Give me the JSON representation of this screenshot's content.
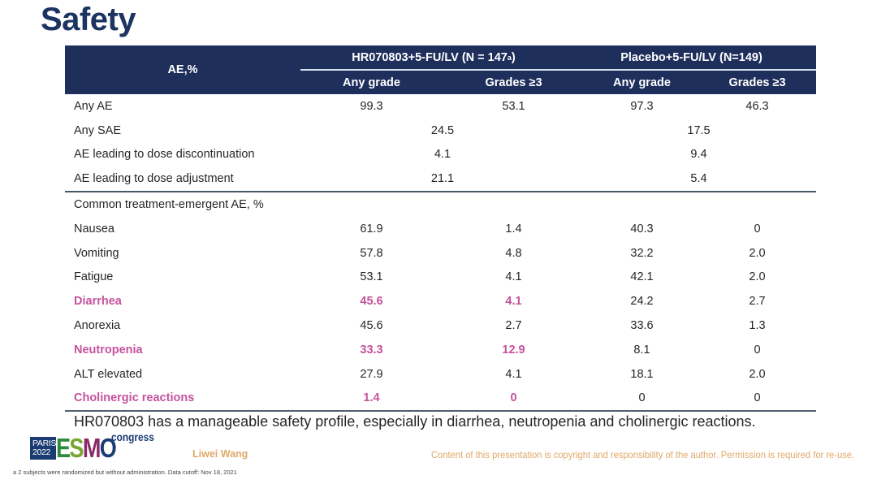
{
  "title": "Safety",
  "table": {
    "header": {
      "row_label": "AE,%",
      "groups": [
        {
          "label": "HR070803+5-FU/LV (N = 147",
          "superscript": "a",
          "suffix": ")"
        },
        {
          "label": "Placebo+5-FU/LV (N=149)"
        }
      ],
      "subheaders": [
        "Any grade",
        "Grades ≥3",
        "Any grade",
        "Grades ≥3"
      ]
    },
    "summary_rows": [
      {
        "label": "Any AE",
        "values": [
          "99.3",
          "53.1",
          "97.3",
          "46.3"
        ]
      },
      {
        "label": "Any SAE",
        "merged": [
          "24.5",
          "17.5"
        ]
      },
      {
        "label": "AE leading to dose discontinuation",
        "merged": [
          "4.1",
          "9.4"
        ]
      },
      {
        "label": "AE leading to dose adjustment",
        "merged": [
          "21.1",
          "5.4"
        ]
      }
    ],
    "section_label": "Common treatment-emergent AE, %",
    "teae_rows": [
      {
        "label": "Nausea",
        "values": [
          "61.9",
          "1.4",
          "40.3",
          "0"
        ],
        "highlight": false
      },
      {
        "label": "Vomiting",
        "values": [
          "57.8",
          "4.8",
          "32.2",
          "2.0"
        ],
        "highlight": false
      },
      {
        "label": "Fatigue",
        "values": [
          "53.1",
          "4.1",
          "42.1",
          "2.0"
        ],
        "highlight": false
      },
      {
        "label": "Diarrhea",
        "values": [
          "45.6",
          "4.1",
          "24.2",
          "2.7"
        ],
        "highlight": true
      },
      {
        "label": "Anorexia",
        "values": [
          "45.6",
          "2.7",
          "33.6",
          "1.3"
        ],
        "highlight": false
      },
      {
        "label": "Neutropenia",
        "values": [
          "33.3",
          "12.9",
          "8.1",
          "0"
        ],
        "highlight": true
      },
      {
        "label": "ALT elevated",
        "values": [
          "27.9",
          "4.1",
          "18.1",
          "2.0"
        ],
        "highlight": false
      },
      {
        "label": "Cholinergic reactions",
        "values": [
          "1.4",
          "0",
          "0",
          "0"
        ],
        "highlight": true
      }
    ]
  },
  "conclusion": "HR070803 has a manageable safety profile, especially in diarrhea, neutropenia and cholinergic reactions.",
  "footer": {
    "logo": {
      "city": "PARIS",
      "year": "2022",
      "letters": [
        "E",
        "S",
        "M",
        "O"
      ],
      "congress": "congress"
    },
    "author": "Liwei Wang",
    "copyright": "Content of this presentation is copyright and responsibility of the author. Permission is required for re-use.",
    "footnote": "a 2 subjects were randomized but without administration. Data cutoff: Nov 18, 2021"
  },
  "colors": {
    "title": "#1b3461",
    "header_bg": "#1f2f5c",
    "highlight": "#c6529d",
    "footer_text": "#e0a867"
  }
}
